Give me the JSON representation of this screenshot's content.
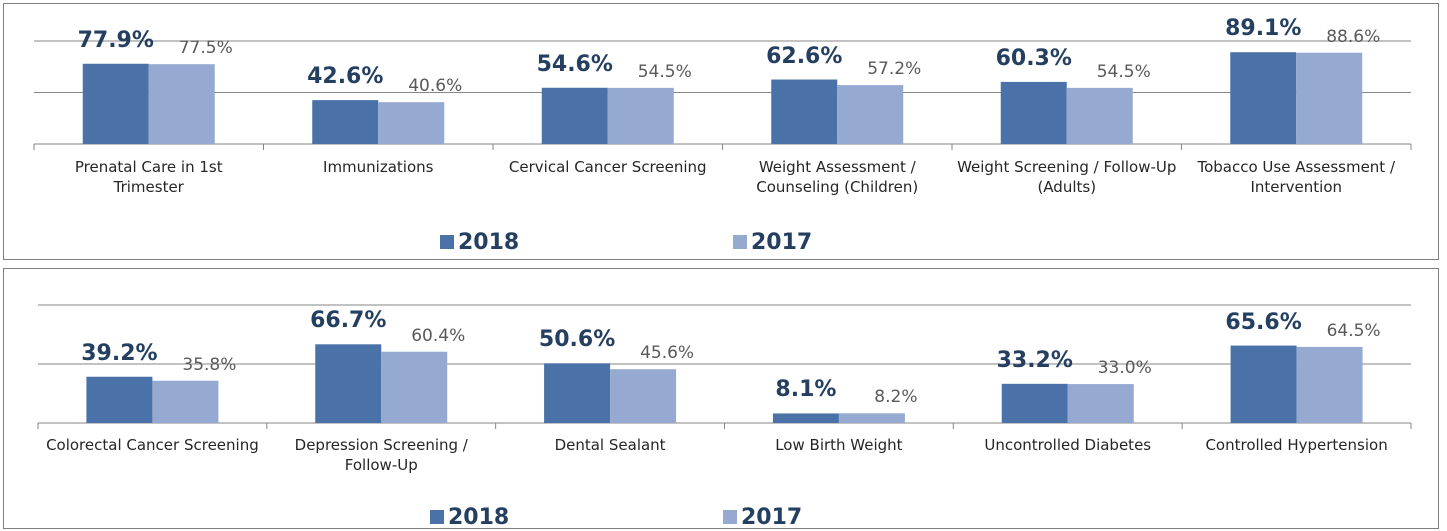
{
  "chart_data": [
    {
      "type": "bar",
      "categories": [
        "Prenatal Care in 1st Trimester",
        "Immunizations",
        "Cervical Cancer Screening",
        "Weight Assessment / Counseling (Children)",
        "Weight Screening / Follow-Up (Adults)",
        "Tobacco Use Assessment / Intervention"
      ],
      "series": [
        {
          "name": "2018",
          "color": "#4a72a8",
          "values": [
            77.9,
            42.6,
            54.6,
            62.6,
            60.3,
            89.1
          ],
          "value_labels": [
            "77.9%",
            "42.6%",
            "54.6%",
            "62.6%",
            "60.3%",
            "89.1%"
          ]
        },
        {
          "name": "2017",
          "color": "#95a9d1",
          "values": [
            77.5,
            40.6,
            54.5,
            57.2,
            54.5,
            88.6
          ],
          "value_labels": [
            "77.5%",
            "40.6%",
            "54.5%",
            "57.2%",
            "54.5%",
            "88.6%"
          ]
        }
      ],
      "ylim": [
        0,
        100
      ],
      "yticks": [
        0,
        50,
        100
      ],
      "grid": true,
      "legend": "bottom"
    },
    {
      "type": "bar",
      "categories": [
        "Colorectal Cancer Screening",
        "Depression Screening / Follow-Up",
        "Dental Sealant",
        "Low Birth Weight",
        "Uncontrolled Diabetes",
        "Controlled Hypertension"
      ],
      "series": [
        {
          "name": "2018",
          "color": "#4a72a8",
          "values": [
            39.2,
            66.7,
            50.6,
            8.1,
            33.2,
            65.6
          ],
          "value_labels": [
            "39.2%",
            "66.7%",
            "50.6%",
            "8.1%",
            "33.2%",
            "65.6%"
          ]
        },
        {
          "name": "2017",
          "color": "#95a9d1",
          "values": [
            35.8,
            60.4,
            45.6,
            8.2,
            33.0,
            64.5
          ],
          "value_labels": [
            "35.8%",
            "60.4%",
            "45.6%",
            "8.2%",
            "33.0%",
            "64.5%"
          ]
        }
      ],
      "ylim": [
        0,
        100
      ],
      "yticks": [
        0,
        50,
        100
      ],
      "grid": true,
      "legend": "bottom"
    }
  ]
}
